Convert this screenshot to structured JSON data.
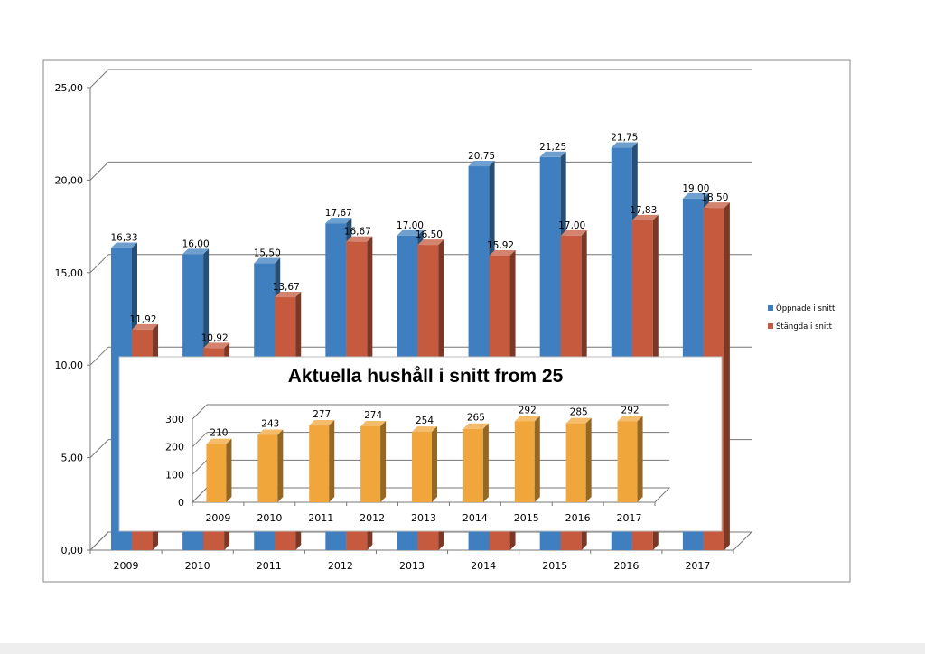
{
  "chart_data": [
    {
      "type": "bar",
      "categories": [
        "2009",
        "2010",
        "2011",
        "2012",
        "2013",
        "2014",
        "2015",
        "2016",
        "2017"
      ],
      "series": [
        {
          "name": "Öppnade i snitt",
          "color": "#3f7fbf",
          "values": [
            16.33,
            16.0,
            15.5,
            17.67,
            17.0,
            20.75,
            21.25,
            21.75,
            19.0
          ],
          "labels": [
            "16,33",
            "16,00",
            "15,50",
            "17,67",
            "17,00",
            "20,75",
            "21,25",
            "21,75",
            "19,00"
          ]
        },
        {
          "name": "Stängda i snitt",
          "color": "#c65a3e",
          "values": [
            11.92,
            10.92,
            13.67,
            16.67,
            16.5,
            15.92,
            17.0,
            17.83,
            18.5
          ],
          "labels": [
            "11,92",
            "10,92",
            "13,67",
            "16,67",
            "16,50",
            "15,92",
            "17,00",
            "17,83",
            "18,50"
          ]
        }
      ],
      "ylim": [
        0,
        25
      ],
      "yticks": [
        0,
        5,
        10,
        15,
        20,
        25
      ],
      "ytick_labels": [
        "0,00",
        "5,00",
        "10,00",
        "15,00",
        "20,00",
        "25,00"
      ],
      "grid": true,
      "legend": "right"
    },
    {
      "type": "bar",
      "title": "Aktuella hushåll i snitt from 25",
      "categories": [
        "2009",
        "2010",
        "2011",
        "2012",
        "2013",
        "2014",
        "2015",
        "2016",
        "2017"
      ],
      "series": [
        {
          "color": "#f0a63a",
          "values": [
            210,
            243,
            277,
            274,
            254,
            265,
            292,
            285,
            292
          ]
        }
      ],
      "ylim": [
        0,
        300
      ],
      "yticks": [
        0,
        100,
        200,
        300
      ],
      "grid": true
    }
  ]
}
